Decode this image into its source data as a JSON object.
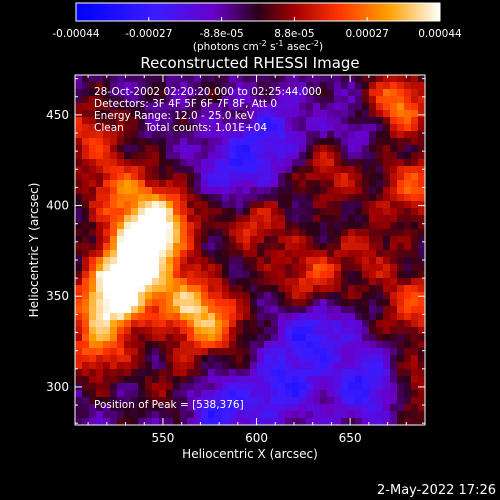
{
  "chart_data": {
    "type": "heatmap",
    "title": "Reconstructed RHESSI Image",
    "xlabel": "Heliocentric X (arcsec)",
    "ylabel": "Heliocentric Y (arcsec)",
    "xlim": [
      503,
      690
    ],
    "ylim": [
      279,
      472
    ],
    "xticks": [
      "550",
      "600",
      "650"
    ],
    "yticks": [
      "300",
      "350",
      "400",
      "450"
    ],
    "colorbar": {
      "range": [
        -0.00044,
        0.00044
      ],
      "ticks": [
        "-0.00044",
        "-0.00027",
        "-8.8e-05",
        "8.8e-05",
        "0.00027",
        "0.00044"
      ],
      "unit_base": "(photons cm",
      "unit_exp1": "-2",
      "unit_mid": " s",
      "unit_exp2": "-1",
      "unit_mid2": " asec",
      "unit_exp3": "-2",
      "unit_close": ")"
    },
    "annotations": {
      "time_range": "28-Oct-2002 02:20:20.000 to 02:25:44.000",
      "detectors": "Detectors: 3F 4F 5F 6F 7F 8F, Att 0",
      "energy": "Energy Range: 12.0 - 25.0 keV",
      "method": "Clean",
      "counts": "Total counts: 1.01E+04",
      "peak": "Position of Peak = [538,376]"
    },
    "peak": [
      538,
      376
    ],
    "hot_regions": [
      {
        "x": 540,
        "y": 380,
        "v": 1.0
      },
      {
        "x": 530,
        "y": 360,
        "v": 0.85
      },
      {
        "x": 520,
        "y": 345,
        "v": 0.8
      },
      {
        "x": 550,
        "y": 395,
        "v": 0.7
      },
      {
        "x": 575,
        "y": 335,
        "v": 0.7
      },
      {
        "x": 560,
        "y": 350,
        "v": 0.6
      },
      {
        "x": 515,
        "y": 320,
        "v": 0.55
      },
      {
        "x": 525,
        "y": 410,
        "v": 0.55
      },
      {
        "x": 510,
        "y": 440,
        "v": 0.45
      },
      {
        "x": 600,
        "y": 390,
        "v": 0.45
      },
      {
        "x": 628,
        "y": 360,
        "v": 0.55
      },
      {
        "x": 640,
        "y": 420,
        "v": 0.45
      },
      {
        "x": 675,
        "y": 455,
        "v": 0.75
      },
      {
        "x": 685,
        "y": 410,
        "v": 0.6
      },
      {
        "x": 685,
        "y": 345,
        "v": 0.55
      },
      {
        "x": 685,
        "y": 300,
        "v": 0.4
      },
      {
        "x": 660,
        "y": 375,
        "v": 0.35
      },
      {
        "x": 600,
        "y": 300,
        "v": 0.35
      },
      {
        "x": 560,
        "y": 300,
        "v": 0.3
      }
    ],
    "cold_regions": [
      {
        "x": 610,
        "y": 300,
        "v": -0.7
      },
      {
        "x": 580,
        "y": 290,
        "v": -0.6
      },
      {
        "x": 630,
        "y": 330,
        "v": -0.5
      },
      {
        "x": 590,
        "y": 420,
        "v": -0.45
      },
      {
        "x": 660,
        "y": 300,
        "v": -0.55
      },
      {
        "x": 610,
        "y": 440,
        "v": -0.35
      },
      {
        "x": 655,
        "y": 440,
        "v": -0.3
      }
    ]
  },
  "footer": {
    "date": "2-May-2022 17:26"
  }
}
